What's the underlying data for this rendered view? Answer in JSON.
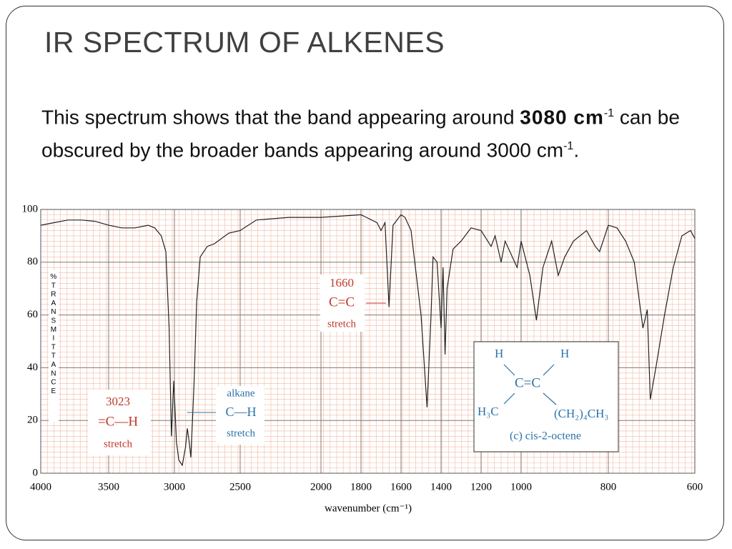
{
  "slide": {
    "title": "IR SPECTRUM OF ALKENES",
    "text": [
      "This spectrum shows that the band appearing around ",
      "3080 cm",
      "-1",
      " can be obscured by the broader bands appearing around 3000 cm",
      "-1",
      "."
    ]
  },
  "chart_data": {
    "type": "line",
    "x_label": "wavenumber (cm⁻¹)",
    "y_label": "%TRANSMITTANCE",
    "color": "#222222",
    "grid": true,
    "x": [
      4000,
      3900,
      3800,
      3700,
      3600,
      3500,
      3400,
      3300,
      3200,
      3150,
      3100,
      3065,
      3040,
      3023,
      3005,
      2985,
      2967,
      2940,
      2915,
      2902,
      2888,
      2875,
      2850,
      2831,
      2804,
      2750,
      2696,
      2587,
      2500,
      2400,
      2200,
      2000,
      1800,
      1720,
      1700,
      1680,
      1660,
      1640,
      1600,
      1580,
      1550,
      1500,
      1470,
      1450,
      1440,
      1420,
      1400,
      1390,
      1380,
      1370,
      1340,
      1300,
      1250,
      1200,
      1150,
      1130,
      1100,
      1080,
      1050,
      1020,
      1000,
      980,
      965,
      950,
      930,
      915,
      900,
      880,
      850,
      830,
      820,
      800,
      780,
      760,
      740,
      720,
      710,
      703,
      690,
      670,
      650,
      630,
      610,
      600
    ],
    "values": [
      94,
      95,
      96,
      96,
      95.5,
      94,
      93,
      93,
      94,
      93,
      90,
      84,
      55,
      14,
      35,
      12,
      5,
      3,
      10,
      17,
      12,
      6,
      35,
      65,
      82,
      86,
      87,
      91,
      92,
      96,
      97,
      97,
      98,
      95,
      92,
      95,
      63,
      94,
      98,
      97,
      92,
      60,
      25,
      60,
      82,
      80,
      55,
      78,
      45,
      70,
      85,
      88,
      93,
      92,
      86,
      90,
      80,
      88,
      83,
      78,
      88,
      75,
      58,
      78,
      88,
      75,
      82,
      88,
      92,
      86,
      84,
      94,
      93,
      88,
      80,
      55,
      62,
      28,
      40,
      60,
      78,
      90,
      92,
      89
    ],
    "xlim": [
      4000,
      600
    ],
    "ylim": [
      0,
      100
    ],
    "xticks": [
      4000,
      3500,
      3000,
      2500,
      2000,
      1800,
      1600,
      1400,
      1200,
      1000,
      800,
      600
    ],
    "yticks": [
      0,
      20,
      40,
      60,
      80,
      100
    ],
    "annotations": {
      "c_c": [
        "1660",
        "C=C",
        "stretch"
      ],
      "ch": [
        "3023",
        "=C—H",
        "stretch"
      ],
      "alkane": [
        "alkane",
        "C—H",
        "stretch"
      ],
      "molecule": [
        "H",
        "H",
        "C=C",
        "H₃C",
        "(CH₂)₄CH₃",
        "(c) cis-2-octene"
      ]
    }
  }
}
